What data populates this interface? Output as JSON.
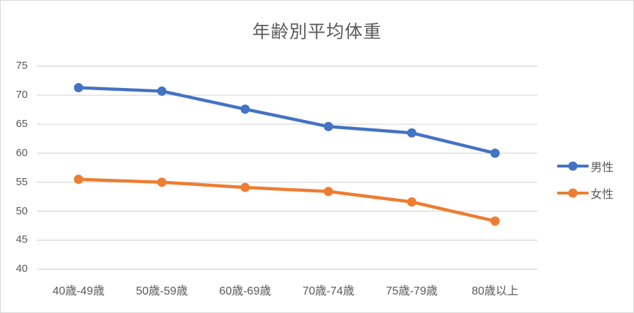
{
  "chart_data": {
    "type": "line",
    "title": "年齢別平均体重",
    "categories": [
      "40歳-49歳",
      "50歳-59歳",
      "60歳-69歳",
      "70歳-74歳",
      "75歳-79歳",
      "80歳以上"
    ],
    "series": [
      {
        "name": "男性",
        "color": "#4472C4",
        "values": [
          71.3,
          70.7,
          67.6,
          64.6,
          63.5,
          60.0
        ]
      },
      {
        "name": "女性",
        "color": "#ED7D31",
        "values": [
          55.5,
          55.0,
          54.1,
          53.4,
          51.6,
          48.3
        ]
      }
    ],
    "xlabel": "",
    "ylabel": "",
    "ylim": [
      40,
      75
    ],
    "yticks": [
      40,
      45,
      50,
      55,
      60,
      65,
      70,
      75
    ],
    "grid": true,
    "legend_position": "right",
    "marker": "circle",
    "gridline_color": "#D9D9D9",
    "text_color": "#595959",
    "background_color": "#FFFFFF",
    "border_color": "#D9D9D9"
  }
}
